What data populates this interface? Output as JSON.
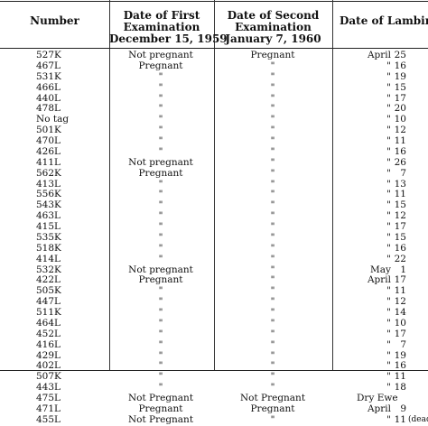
{
  "headers": {
    "number": "Number",
    "first": [
      "Date of First",
      "Examination",
      "December 15, 1959"
    ],
    "second": [
      "Date of Second",
      "Examination",
      "January 7, 1960"
    ],
    "lambing": "Date of Lambing"
  },
  "rows": [
    {
      "number": "527K",
      "first": "Not pregnant",
      "second": "Pregnant",
      "lamb_month": "April",
      "lamb_day": "25",
      "lamb_note": ""
    },
    {
      "number": "467L",
      "first": "Pregnant",
      "second": "\"",
      "lamb_month": "\"",
      "lamb_day": "16",
      "lamb_note": ""
    },
    {
      "number": "531K",
      "first": "\"",
      "second": "\"",
      "lamb_month": "\"",
      "lamb_day": "19",
      "lamb_note": ""
    },
    {
      "number": "466L",
      "first": "\"",
      "second": "\"",
      "lamb_month": "\"",
      "lamb_day": "15",
      "lamb_note": ""
    },
    {
      "number": "440L",
      "first": "\"",
      "second": "\"",
      "lamb_month": "\"",
      "lamb_day": "17",
      "lamb_note": ""
    },
    {
      "number": "478L",
      "first": "\"",
      "second": "\"",
      "lamb_month": "\"",
      "lamb_day": "20",
      "lamb_note": ""
    },
    {
      "number": "No tag",
      "first": "\"",
      "second": "\"",
      "lamb_month": "\"",
      "lamb_day": "10",
      "lamb_note": ""
    },
    {
      "number": "501K",
      "first": "\"",
      "second": "\"",
      "lamb_month": "\"",
      "lamb_day": "12",
      "lamb_note": ""
    },
    {
      "number": "470L",
      "first": "\"",
      "second": "\"",
      "lamb_month": "\"",
      "lamb_day": "11",
      "lamb_note": ""
    },
    {
      "number": "426L",
      "first": "\"",
      "second": "\"",
      "lamb_month": "\"",
      "lamb_day": "16",
      "lamb_note": ""
    },
    {
      "number": "411L",
      "first": "Not pregnant",
      "second": "\"",
      "lamb_month": "\"",
      "lamb_day": "26",
      "lamb_note": ""
    },
    {
      "number": "562K",
      "first": "Pregnant",
      "second": "\"",
      "lamb_month": "\"",
      "lamb_day": "7",
      "lamb_note": ""
    },
    {
      "number": "413L",
      "first": "\"",
      "second": "\"",
      "lamb_month": "\"",
      "lamb_day": "13",
      "lamb_note": ""
    },
    {
      "number": "556K",
      "first": "\"",
      "second": "\"",
      "lamb_month": "\"",
      "lamb_day": "11",
      "lamb_note": ""
    },
    {
      "number": "543K",
      "first": "\"",
      "second": "\"",
      "lamb_month": "\"",
      "lamb_day": "15",
      "lamb_note": ""
    },
    {
      "number": "463L",
      "first": "\"",
      "second": "\"",
      "lamb_month": "\"",
      "lamb_day": "12",
      "lamb_note": ""
    },
    {
      "number": "415L",
      "first": "\"",
      "second": "\"",
      "lamb_month": "\"",
      "lamb_day": "17",
      "lamb_note": ""
    },
    {
      "number": "535K",
      "first": "\"",
      "second": "\"",
      "lamb_month": "\"",
      "lamb_day": "15",
      "lamb_note": ""
    },
    {
      "number": "518K",
      "first": "\"",
      "second": "\"",
      "lamb_month": "\"",
      "lamb_day": "16",
      "lamb_note": ""
    },
    {
      "number": "414L",
      "first": "\"",
      "second": "\"",
      "lamb_month": "\"",
      "lamb_day": "22",
      "lamb_note": ""
    },
    {
      "number": "532K",
      "first": "Not pregnant",
      "second": "\"",
      "lamb_month": "May",
      "lamb_day": "1",
      "lamb_note": ""
    },
    {
      "number": "422L",
      "first": "Pregnant",
      "second": "\"",
      "lamb_month": "April",
      "lamb_day": "17",
      "lamb_note": ""
    },
    {
      "number": "505K",
      "first": "\"",
      "second": "\"",
      "lamb_month": "\"",
      "lamb_day": "11",
      "lamb_note": ""
    },
    {
      "number": "447L",
      "first": "\"",
      "second": "\"",
      "lamb_month": "\"",
      "lamb_day": "12",
      "lamb_note": ""
    },
    {
      "number": "511K",
      "first": "\"",
      "second": "\"",
      "lamb_month": "\"",
      "lamb_day": "14",
      "lamb_note": ""
    },
    {
      "number": "464L",
      "first": "\"",
      "second": "\"",
      "lamb_month": "\"",
      "lamb_day": "10",
      "lamb_note": ""
    },
    {
      "number": "452L",
      "first": "\"",
      "second": "\"",
      "lamb_month": "\"",
      "lamb_day": "17",
      "lamb_note": ""
    },
    {
      "number": "416L",
      "first": "\"",
      "second": "\"",
      "lamb_month": "\"",
      "lamb_day": "7",
      "lamb_note": ""
    },
    {
      "number": "429L",
      "first": "\"",
      "second": "\"",
      "lamb_month": "\"",
      "lamb_day": "19",
      "lamb_note": ""
    },
    {
      "number": "402L",
      "first": "\"",
      "second": "\"",
      "lamb_month": "\"",
      "lamb_day": "16",
      "lamb_note": ""
    },
    {
      "number": "507K",
      "first": "\"",
      "second": "\"",
      "lamb_month": "\"",
      "lamb_day": "11",
      "lamb_note": ""
    },
    {
      "number": "443L",
      "first": "\"",
      "second": "\"",
      "lamb_month": "\"",
      "lamb_day": "18",
      "lamb_note": ""
    },
    {
      "number": "475L",
      "first": "Not Pregnant",
      "second": "Not Pregnant",
      "lamb_month": "Dry Ewe",
      "lamb_day": "",
      "lamb_note": ""
    },
    {
      "number": "471L",
      "first": "Pregnant",
      "second": "Pregnant",
      "lamb_month": "April",
      "lamb_day": "9",
      "lamb_note": ""
    },
    {
      "number": "455L",
      "first": "Not Pregnant",
      "second": "\"",
      "lamb_month": "\"",
      "lamb_day": "11",
      "lamb_note": "(dead)"
    }
  ]
}
